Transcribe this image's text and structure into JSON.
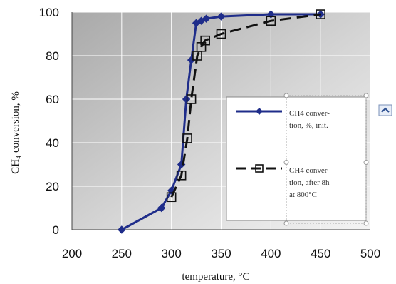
{
  "chart_data": {
    "type": "line",
    "title": "",
    "xlabel": "temperature, °C",
    "ylabel": "CH₄ conversion, %",
    "xlim": [
      200,
      500
    ],
    "ylim": [
      0,
      100
    ],
    "x_ticks": [
      "200",
      "250",
      "300",
      "350",
      "400",
      "450",
      "500"
    ],
    "y_ticks": [
      "0",
      "20",
      "40",
      "60",
      "80",
      "100"
    ],
    "grid": true,
    "legend_position": "right",
    "series": [
      {
        "name": "CH4 conver- tion, %, init.",
        "legend_lines": [
          "CH4 conver-",
          "tion, %, init."
        ],
        "color": "#1f2d8a",
        "marker": "diamond",
        "line_style": "solid",
        "x": [
          250,
          290,
          300,
          310,
          315,
          320,
          325,
          330,
          335,
          350,
          400,
          450
        ],
        "y": [
          0,
          10,
          18,
          30,
          60,
          78,
          95,
          96,
          97,
          98,
          99,
          99
        ]
      },
      {
        "name": "CH4 conver- tion, after 8h at 800°C",
        "legend_lines": [
          "CH4 conver-",
          "tion, after 8h",
          "at 800°C"
        ],
        "color": "#111111",
        "marker": "square",
        "line_style": "dashed",
        "x": [
          300,
          310,
          316,
          320,
          326,
          330,
          334,
          350,
          400,
          450
        ],
        "y": [
          15,
          25,
          42,
          60,
          80,
          84,
          87,
          90,
          96,
          99
        ]
      }
    ]
  }
}
